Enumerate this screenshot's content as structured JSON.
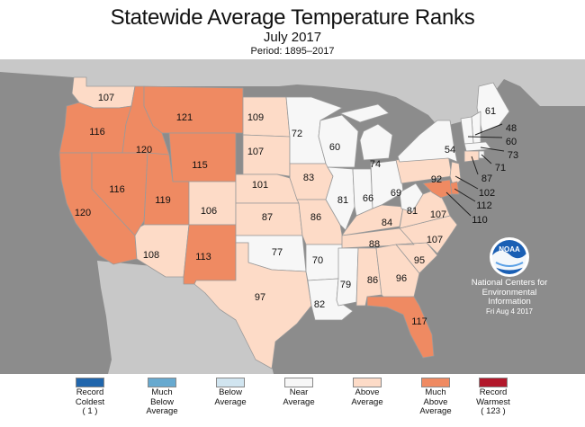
{
  "header": {
    "title": "Statewide Average Temperature Ranks",
    "subtitle": "July 2017",
    "period": "Period: 1895–2017"
  },
  "colors": {
    "record_coldest": "#2166ac",
    "much_below": "#67a9cf",
    "below": "#d1e5f0",
    "near": "#f7f7f7",
    "above": "#fddbc7",
    "much_above": "#ef8a62",
    "record_warmest": "#b2182b",
    "ocean": "#8c8c8c",
    "foreign_land": "#c8c8c8"
  },
  "state_ranks": [
    {
      "state": "WA",
      "rank": "107",
      "category": "above"
    },
    {
      "state": "OR",
      "rank": "116",
      "category": "much_above"
    },
    {
      "state": "CA",
      "rank": "120",
      "category": "much_above"
    },
    {
      "state": "ID",
      "rank": "120",
      "category": "much_above"
    },
    {
      "state": "NV",
      "rank": "116",
      "category": "much_above"
    },
    {
      "state": "MT",
      "rank": "121",
      "category": "much_above"
    },
    {
      "state": "WY",
      "rank": "115",
      "category": "much_above"
    },
    {
      "state": "UT",
      "rank": "119",
      "category": "much_above"
    },
    {
      "state": "AZ",
      "rank": "108",
      "category": "above"
    },
    {
      "state": "CO",
      "rank": "106",
      "category": "above"
    },
    {
      "state": "NM",
      "rank": "113",
      "category": "much_above"
    },
    {
      "state": "ND",
      "rank": "109",
      "category": "above"
    },
    {
      "state": "SD",
      "rank": "107",
      "category": "above"
    },
    {
      "state": "NE",
      "rank": "101",
      "category": "above"
    },
    {
      "state": "KS",
      "rank": "87",
      "category": "above"
    },
    {
      "state": "OK",
      "rank": "77",
      "category": "near"
    },
    {
      "state": "TX",
      "rank": "97",
      "category": "above"
    },
    {
      "state": "MN",
      "rank": "72",
      "category": "near"
    },
    {
      "state": "IA",
      "rank": "83",
      "category": "above"
    },
    {
      "state": "MO",
      "rank": "86",
      "category": "above"
    },
    {
      "state": "AR",
      "rank": "70",
      "category": "near"
    },
    {
      "state": "LA",
      "rank": "82",
      "category": "near"
    },
    {
      "state": "WI",
      "rank": "60",
      "category": "near"
    },
    {
      "state": "IL",
      "rank": "81",
      "category": "near"
    },
    {
      "state": "MI",
      "rank": "74",
      "category": "near"
    },
    {
      "state": "IN",
      "rank": "66",
      "category": "near"
    },
    {
      "state": "OH",
      "rank": "69",
      "category": "near"
    },
    {
      "state": "KY",
      "rank": "84",
      "category": "above"
    },
    {
      "state": "TN",
      "rank": "88",
      "category": "above"
    },
    {
      "state": "MS",
      "rank": "79",
      "category": "near"
    },
    {
      "state": "AL",
      "rank": "86",
      "category": "above"
    },
    {
      "state": "GA",
      "rank": "96",
      "category": "above"
    },
    {
      "state": "FL",
      "rank": "117",
      "category": "much_above"
    },
    {
      "state": "SC",
      "rank": "95",
      "category": "above"
    },
    {
      "state": "NC",
      "rank": "107",
      "category": "above"
    },
    {
      "state": "VA",
      "rank": "107",
      "category": "above"
    },
    {
      "state": "WV",
      "rank": "81",
      "category": "near"
    },
    {
      "state": "PA",
      "rank": "92",
      "category": "above"
    },
    {
      "state": "NY",
      "rank": "54",
      "category": "near"
    },
    {
      "state": "ME",
      "rank": "61",
      "category": "near"
    },
    {
      "state": "NH",
      "rank": "48",
      "category": "near"
    },
    {
      "state": "VT",
      "rank": "60",
      "category": "near"
    },
    {
      "state": "MA",
      "rank": "73",
      "category": "near"
    },
    {
      "state": "RI",
      "rank": "71",
      "category": "near"
    },
    {
      "state": "CT",
      "rank": "87",
      "category": "above"
    },
    {
      "state": "NJ",
      "rank": "102",
      "category": "above"
    },
    {
      "state": "DE",
      "rank": "112",
      "category": "much_above"
    },
    {
      "state": "MD",
      "rank": "110",
      "category": "much_above"
    }
  ],
  "noaa": {
    "logo_text": "NOAA",
    "line1": "National Centers for",
    "line2": "Environmental",
    "line3": "Information",
    "date": "Fri Aug  4 2017"
  },
  "legend": [
    {
      "key": "record_coldest",
      "lines": [
        "Record",
        "Coldest",
        "( 1 )"
      ]
    },
    {
      "key": "much_below",
      "lines": [
        "Much",
        "Below",
        "Average"
      ]
    },
    {
      "key": "below",
      "lines": [
        "Below",
        "Average"
      ]
    },
    {
      "key": "near",
      "lines": [
        "Near",
        "Average"
      ]
    },
    {
      "key": "above",
      "lines": [
        "Above",
        "Average"
      ]
    },
    {
      "key": "much_above",
      "lines": [
        "Much",
        "Above",
        "Average"
      ]
    },
    {
      "key": "record_warmest",
      "lines": [
        "Record",
        "Warmest",
        "( 123 )"
      ]
    }
  ]
}
